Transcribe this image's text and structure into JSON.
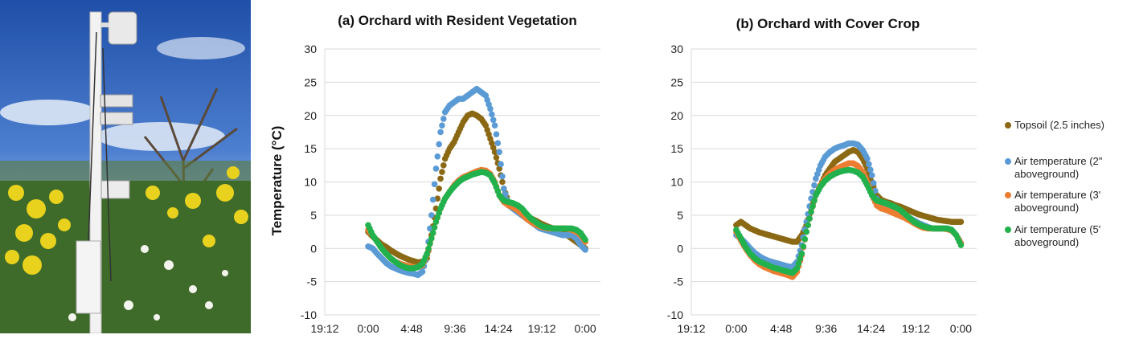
{
  "photo": {
    "description_icon": "weather-station-photo"
  },
  "chart_data": [
    {
      "type": "scatter",
      "title": "(a) Orchard with Resident Vegetation",
      "ylabel": "Temperature (°C)",
      "xlabel": "",
      "ylim": [
        -10,
        30
      ],
      "yticks": [
        30,
        25,
        20,
        15,
        10,
        5,
        0,
        -5,
        -10
      ],
      "xticks": [
        "19:12",
        "0:00",
        "4:48",
        "9:36",
        "14:24",
        "19:12",
        "0:00"
      ],
      "grid": true,
      "series": [
        {
          "name": "Topsoil (2.5 inches)",
          "color": "#8B6914",
          "x": [
            0.0,
            0.5,
            1.0,
            1.5,
            2.0,
            2.5,
            3.0,
            3.5,
            4.0,
            4.5,
            5.0,
            5.5,
            6.0,
            6.5,
            7.0,
            7.5,
            8.0,
            8.5,
            9.0,
            9.5,
            10.0,
            10.5,
            11.0,
            11.5,
            12.0,
            12.5,
            13.0,
            13.5,
            14.0,
            14.5,
            15.0,
            15.5,
            16.0,
            16.5,
            17.0,
            17.5,
            18.0,
            18.5,
            19.0,
            19.5,
            20.0,
            20.5,
            21.0,
            21.5,
            22.0,
            22.5,
            23.0,
            23.5,
            24.0
          ],
          "y": [
            2.5,
            1.8,
            1.2,
            0.6,
            0.2,
            -0.3,
            -0.7,
            -1.1,
            -1.4,
            -1.7,
            -1.9,
            -2.1,
            -2.0,
            -1.5,
            2.0,
            6.0,
            10.5,
            13.5,
            15.0,
            16.0,
            17.5,
            19.0,
            20.0,
            20.3,
            20.0,
            19.5,
            18.5,
            16.5,
            14.5,
            12.0,
            9.0,
            7.0,
            6.0,
            5.5,
            5.0,
            4.8,
            4.5,
            4.2,
            3.8,
            3.5,
            3.2,
            3.0,
            2.8,
            2.5,
            2.0,
            1.5,
            1.0,
            0.5,
            0.0
          ]
        },
        {
          "name": "Air temperature (2\" aboveground)",
          "color": "#5B9BD5",
          "x": [
            0.0,
            0.5,
            1.0,
            1.5,
            2.0,
            2.5,
            3.0,
            3.5,
            4.0,
            4.5,
            5.0,
            5.5,
            6.0,
            6.5,
            7.0,
            7.5,
            8.0,
            8.5,
            9.0,
            9.5,
            10.0,
            10.5,
            11.0,
            11.5,
            12.0,
            12.5,
            13.0,
            13.5,
            14.0,
            14.5,
            15.0,
            15.5,
            16.0,
            16.5,
            17.0,
            17.5,
            18.0,
            18.5,
            19.0,
            19.5,
            20.0,
            20.5,
            21.0,
            21.5,
            22.0,
            22.5,
            23.0,
            23.5,
            24.0
          ],
          "y": [
            0.3,
            0.0,
            -0.8,
            -1.5,
            -2.2,
            -2.7,
            -3.0,
            -3.3,
            -3.5,
            -3.7,
            -3.8,
            -4.0,
            -3.5,
            -1.0,
            5.0,
            12.0,
            17.5,
            20.5,
            21.5,
            22.0,
            22.5,
            22.5,
            23.0,
            23.5,
            24.0,
            23.5,
            23.0,
            21.0,
            18.5,
            14.5,
            9.0,
            6.5,
            6.0,
            5.5,
            5.0,
            4.5,
            4.0,
            3.5,
            3.0,
            2.8,
            2.6,
            2.4,
            2.2,
            2.0,
            2.0,
            2.0,
            1.5,
            0.5,
            -0.2
          ]
        },
        {
          "name": "Air temperature (3' aboveground)",
          "color": "#ED7D31",
          "x": [
            0.0,
            0.5,
            1.0,
            1.5,
            2.0,
            2.5,
            3.0,
            3.5,
            4.0,
            4.5,
            5.0,
            5.5,
            6.0,
            6.5,
            7.0,
            7.5,
            8.0,
            8.5,
            9.0,
            9.5,
            10.0,
            10.5,
            11.0,
            11.5,
            12.0,
            12.5,
            13.0,
            13.5,
            14.0,
            14.5,
            15.0,
            15.5,
            16.0,
            16.5,
            17.0,
            17.5,
            18.0,
            18.5,
            19.0,
            19.5,
            20.0,
            20.5,
            21.0,
            21.5,
            22.0,
            22.5,
            23.0,
            23.5,
            24.0
          ],
          "y": [
            2.8,
            2.0,
            1.0,
            0.0,
            -0.8,
            -1.5,
            -2.0,
            -2.3,
            -2.5,
            -2.7,
            -2.8,
            -2.8,
            -2.5,
            -1.0,
            1.5,
            4.0,
            6.0,
            7.5,
            8.5,
            9.5,
            10.2,
            10.7,
            11.0,
            11.3,
            11.6,
            11.8,
            11.7,
            11.2,
            10.0,
            8.0,
            7.0,
            6.5,
            6.2,
            5.8,
            5.2,
            4.5,
            4.0,
            3.6,
            3.3,
            3.1,
            3.0,
            3.0,
            3.0,
            3.0,
            3.0,
            2.8,
            2.5,
            2.0,
            1.0
          ]
        },
        {
          "name": "Air temperature (5' aboveground)",
          "color": "#21B14D",
          "x": [
            0.0,
            0.5,
            1.0,
            1.5,
            2.0,
            2.5,
            3.0,
            3.5,
            4.0,
            4.5,
            5.0,
            5.5,
            6.0,
            6.5,
            7.0,
            7.5,
            8.0,
            8.5,
            9.0,
            9.5,
            10.0,
            10.5,
            11.0,
            11.5,
            12.0,
            12.5,
            13.0,
            13.5,
            14.0,
            14.5,
            15.0,
            15.5,
            16.0,
            16.5,
            17.0,
            17.5,
            18.0,
            18.5,
            19.0,
            19.5,
            20.0,
            20.5,
            21.0,
            21.5,
            22.0,
            22.5,
            23.0,
            23.5,
            24.0
          ],
          "y": [
            3.5,
            2.0,
            1.0,
            0.0,
            -0.8,
            -1.5,
            -2.0,
            -2.5,
            -2.8,
            -3.0,
            -3.0,
            -2.8,
            -2.3,
            -0.8,
            1.5,
            4.0,
            6.0,
            7.5,
            8.5,
            9.3,
            10.0,
            10.5,
            10.8,
            11.1,
            11.3,
            11.5,
            11.4,
            11.0,
            9.8,
            8.0,
            7.2,
            7.0,
            6.8,
            6.5,
            6.0,
            5.2,
            4.5,
            4.0,
            3.5,
            3.2,
            3.1,
            3.0,
            3.0,
            3.0,
            3.0,
            3.0,
            2.8,
            2.3,
            1.3
          ]
        }
      ]
    },
    {
      "type": "scatter",
      "title": "(b) Orchard with Cover Crop",
      "ylabel": "",
      "xlabel": "",
      "ylim": [
        -10,
        30
      ],
      "yticks": [
        30,
        25,
        20,
        15,
        10,
        5,
        0,
        -5,
        -10
      ],
      "xticks": [
        "19:12",
        "0:00",
        "4:48",
        "9:36",
        "14:24",
        "19:12",
        "0:00"
      ],
      "grid": true,
      "series": [
        {
          "name": "Topsoil (2.5 inches)",
          "color": "#8B6914",
          "x": [
            0.0,
            0.5,
            1.0,
            1.5,
            2.0,
            2.5,
            3.0,
            3.5,
            4.0,
            4.5,
            5.0,
            5.5,
            6.0,
            6.5,
            7.0,
            7.5,
            8.0,
            8.5,
            9.0,
            9.5,
            10.0,
            10.5,
            11.0,
            11.5,
            12.0,
            12.5,
            13.0,
            13.5,
            14.0,
            14.5,
            15.0,
            15.5,
            16.0,
            16.5,
            17.0,
            17.5,
            18.0,
            18.5,
            19.0,
            19.5,
            20.0,
            20.5,
            21.0,
            21.5,
            22.0,
            22.5,
            23.0,
            23.5,
            24.0
          ],
          "y": [
            3.5,
            4.0,
            3.5,
            3.0,
            2.7,
            2.4,
            2.2,
            2.0,
            1.8,
            1.6,
            1.4,
            1.2,
            1.0,
            1.0,
            2.0,
            3.5,
            6.0,
            8.0,
            9.5,
            11.0,
            12.0,
            13.0,
            13.5,
            14.0,
            14.5,
            14.8,
            14.5,
            13.5,
            12.0,
            10.0,
            8.0,
            7.3,
            7.0,
            6.8,
            6.5,
            6.3,
            6.0,
            5.7,
            5.4,
            5.1,
            4.9,
            4.7,
            4.5,
            4.3,
            4.2,
            4.1,
            4.0,
            4.0,
            4.0
          ]
        },
        {
          "name": "Air temperature (2\" aboveground)",
          "color": "#5B9BD5",
          "x": [
            0.0,
            0.5,
            1.0,
            1.5,
            2.0,
            2.5,
            3.0,
            3.5,
            4.0,
            4.5,
            5.0,
            5.5,
            6.0,
            6.5,
            7.0,
            7.5,
            8.0,
            8.5,
            9.0,
            9.5,
            10.0,
            10.5,
            11.0,
            11.5,
            12.0,
            12.5,
            13.0,
            13.5,
            14.0,
            14.5,
            15.0,
            15.5,
            16.0,
            16.5,
            17.0,
            17.5,
            18.0,
            18.5,
            19.0,
            19.5,
            20.0,
            20.5,
            21.0,
            21.5,
            22.0,
            22.5,
            23.0,
            23.5,
            24.0
          ],
          "y": [
            2.0,
            1.5,
            0.8,
            0.0,
            -0.7,
            -1.2,
            -1.6,
            -1.9,
            -2.1,
            -2.3,
            -2.5,
            -2.7,
            -2.8,
            -2.0,
            0.5,
            4.0,
            7.5,
            10.5,
            12.5,
            13.8,
            14.5,
            15.0,
            15.3,
            15.5,
            15.8,
            15.8,
            15.6,
            14.8,
            13.5,
            11.0,
            7.5,
            6.5,
            6.2,
            6.0,
            5.7,
            5.4,
            5.0,
            4.6,
            4.2,
            3.8,
            3.5,
            3.2,
            3.0,
            3.0,
            3.0,
            3.0,
            2.8,
            2.0,
            0.8
          ]
        },
        {
          "name": "Air temperature (3' aboveground)",
          "color": "#ED7D31",
          "x": [
            0.0,
            0.5,
            1.0,
            1.5,
            2.0,
            2.5,
            3.0,
            3.5,
            4.0,
            4.5,
            5.0,
            5.5,
            6.0,
            6.5,
            7.0,
            7.5,
            8.0,
            8.5,
            9.0,
            9.5,
            10.0,
            10.5,
            11.0,
            11.5,
            12.0,
            12.5,
            13.0,
            13.5,
            14.0,
            14.5,
            15.0,
            15.5,
            16.0,
            16.5,
            17.0,
            17.5,
            18.0,
            18.5,
            19.0,
            19.5,
            20.0,
            20.5,
            21.0,
            21.5,
            22.0,
            22.5,
            23.0,
            23.5,
            24.0
          ],
          "y": [
            2.5,
            1.2,
            0.0,
            -1.0,
            -1.8,
            -2.4,
            -2.8,
            -3.1,
            -3.4,
            -3.6,
            -3.8,
            -4.0,
            -4.3,
            -3.5,
            -1.0,
            2.5,
            5.5,
            8.0,
            9.5,
            10.5,
            11.3,
            11.8,
            12.2,
            12.5,
            12.8,
            12.8,
            12.4,
            11.5,
            10.0,
            8.0,
            6.5,
            6.0,
            5.8,
            5.5,
            5.2,
            4.9,
            4.6,
            4.2,
            3.8,
            3.4,
            3.1,
            3.0,
            3.0,
            3.0,
            3.0,
            2.9,
            2.7,
            2.0,
            0.8
          ]
        },
        {
          "name": "Air temperature (5' aboveground)",
          "color": "#21B14D",
          "x": [
            0.0,
            0.5,
            1.0,
            1.5,
            2.0,
            2.5,
            3.0,
            3.5,
            4.0,
            4.5,
            5.0,
            5.5,
            6.0,
            6.5,
            7.0,
            7.5,
            8.0,
            8.5,
            9.0,
            9.5,
            10.0,
            10.5,
            11.0,
            11.5,
            12.0,
            12.5,
            13.0,
            13.5,
            14.0,
            14.5,
            15.0,
            15.5,
            16.0,
            16.5,
            17.0,
            17.5,
            18.0,
            18.5,
            19.0,
            19.5,
            20.0,
            20.5,
            21.0,
            21.5,
            22.0,
            22.5,
            23.0,
            23.5,
            24.0
          ],
          "y": [
            2.8,
            1.5,
            0.2,
            -0.8,
            -1.5,
            -2.0,
            -2.3,
            -2.6,
            -2.9,
            -3.1,
            -3.3,
            -3.5,
            -3.7,
            -3.0,
            -0.8,
            2.5,
            5.5,
            8.0,
            9.3,
            10.2,
            10.8,
            11.2,
            11.5,
            11.7,
            11.8,
            11.7,
            11.4,
            10.8,
            9.5,
            8.0,
            7.2,
            7.0,
            6.8,
            6.5,
            6.2,
            5.8,
            5.2,
            4.6,
            4.0,
            3.6,
            3.3,
            3.1,
            3.0,
            3.0,
            3.0,
            3.0,
            2.8,
            2.0,
            0.5
          ]
        }
      ]
    }
  ],
  "legend": {
    "items": [
      {
        "lines": [
          "Topsoil (2.5 inches)"
        ],
        "color": "#8B6914"
      },
      {
        "lines": [
          "Air temperature (2\"",
          "aboveground)"
        ],
        "color": "#5B9BD5"
      },
      {
        "lines": [
          "Air temperature (3'",
          "aboveground)"
        ],
        "color": "#ED7D31"
      },
      {
        "lines": [
          "Air temperature (5'",
          "aboveground)"
        ],
        "color": "#21B14D"
      }
    ]
  }
}
